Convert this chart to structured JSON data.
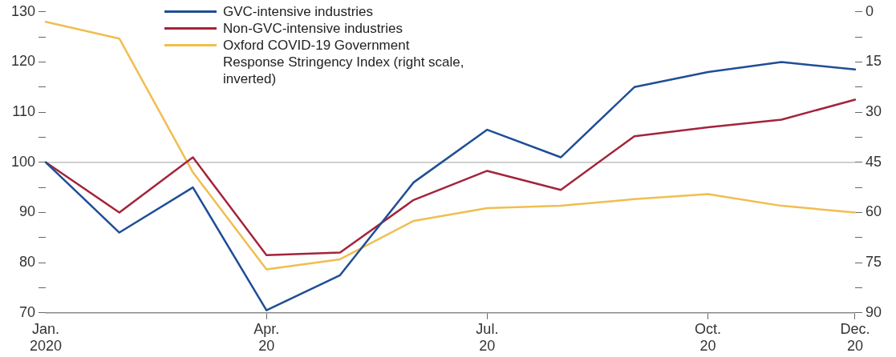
{
  "chart_data": {
    "type": "line",
    "categories": [
      "Jan.\n2020",
      null,
      null,
      "Apr.\n20",
      null,
      null,
      "Jul.\n20",
      null,
      null,
      "Oct.\n20",
      null,
      "Dec.\n20"
    ],
    "series": [
      {
        "name": "GVC-intensive industries",
        "color": "#1f4e96",
        "values": [
          100,
          86,
          95,
          70.5,
          77.5,
          96,
          106.5,
          101,
          115,
          118,
          120,
          118.5
        ]
      },
      {
        "name": "Non-GVC-intensive industries",
        "color": "#a3243b",
        "values": [
          100,
          90,
          101,
          81.5,
          82,
          92.5,
          98.3,
          94.5,
          105.2,
          107,
          108.5,
          112.5
        ]
      },
      {
        "name": "Oxford COVID-19 Government Response Stringency Index (right scale, inverted)",
        "color": "#f0be50",
        "axis": "y2",
        "values": [
          3,
          8,
          48,
          77,
          74,
          62.5,
          58.7,
          58,
          56,
          54.5,
          58,
          60
        ]
      }
    ],
    "ylim": [
      70,
      130
    ],
    "yticks": [
      70,
      {
        "value": 75,
        "label": null
      },
      80,
      {
        "value": 85,
        "label": null
      },
      90,
      {
        "value": 95,
        "label": null
      },
      100,
      {
        "value": 105,
        "label": null
      },
      110,
      {
        "value": 115,
        "label": null
      },
      120,
      {
        "value": 125,
        "label": null
      },
      130
    ],
    "y2lim": [
      90,
      0
    ],
    "y2ticks": [
      0,
      {
        "value": 7.5,
        "label": null
      },
      15,
      {
        "value": 22.5,
        "label": null
      },
      30,
      {
        "value": 37.5,
        "label": null
      },
      45,
      {
        "value": 52.5,
        "label": null
      },
      60,
      {
        "value": 67.5,
        "label": null
      },
      75,
      {
        "value": 82.5,
        "label": null
      },
      90
    ],
    "ref_lines": [
      {
        "axis": "y",
        "value": 100,
        "color": "#b4b4b4"
      }
    ],
    "grid": false,
    "legend": "top",
    "marker": "none",
    "line_style": "solid"
  }
}
